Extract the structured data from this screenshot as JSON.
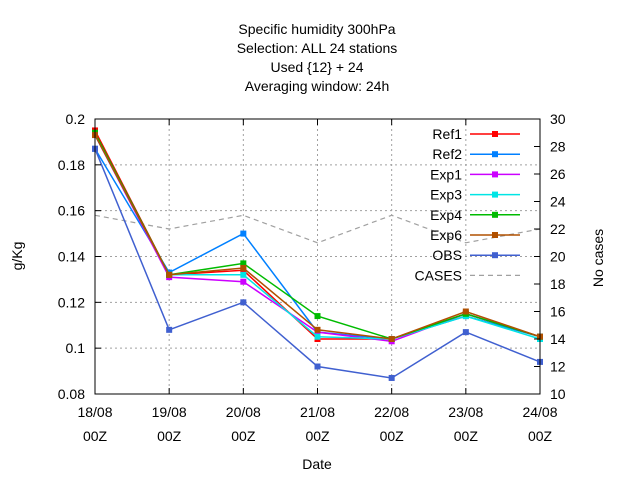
{
  "chart_data": {
    "type": "line",
    "title_lines": [
      "Specific humidity 300hPa",
      "Selection: ALL      24 stations",
      "Used {12} + 24",
      "Averaging window: 24h"
    ],
    "xlabel": "Date",
    "ylabel": "g/Kg",
    "y2label": "No cases",
    "categories": [
      "18/08 00Z",
      "19/08 00Z",
      "20/08 00Z",
      "21/08 00Z",
      "22/08 00Z",
      "23/08 00Z",
      "24/08 00Z"
    ],
    "category_lines": [
      [
        "18/08",
        "00Z"
      ],
      [
        "19/08",
        "00Z"
      ],
      [
        "20/08",
        "00Z"
      ],
      [
        "21/08",
        "00Z"
      ],
      [
        "22/08",
        "00Z"
      ],
      [
        "23/08",
        "00Z"
      ],
      [
        "24/08",
        "00Z"
      ]
    ],
    "ylim": [
      0.08,
      0.2
    ],
    "yticks": [
      0.08,
      0.1,
      0.12,
      0.14,
      0.16,
      0.18,
      0.2
    ],
    "yticklabels": [
      "0.08",
      "0.1",
      "0.12",
      "0.14",
      "0.16",
      "0.18",
      "0.2"
    ],
    "y2lim": [
      10,
      30
    ],
    "y2ticks": [
      10,
      12,
      14,
      16,
      18,
      20,
      22,
      24,
      26,
      28,
      30
    ],
    "y2ticklabels": [
      "10",
      "12",
      "14",
      "16",
      "18",
      "20",
      "22",
      "24",
      "26",
      "28",
      "30"
    ],
    "grid": true,
    "legend_position": "top-right",
    "series": [
      {
        "name": "Ref1",
        "color": "#ff0000",
        "values": [
          0.195,
          0.132,
          0.134,
          0.104,
          0.104,
          0.115,
          0.105
        ]
      },
      {
        "name": "Ref2",
        "color": "#0080ff",
        "values": [
          0.187,
          0.133,
          0.15,
          0.107,
          0.104,
          0.114,
          0.105
        ]
      },
      {
        "name": "Exp1",
        "color": "#cc00ff",
        "values": [
          0.193,
          0.131,
          0.129,
          0.107,
          0.103,
          0.115,
          0.105
        ]
      },
      {
        "name": "Exp3",
        "color": "#00e5e5",
        "values": [
          0.193,
          0.132,
          0.132,
          0.105,
          0.104,
          0.114,
          0.104
        ]
      },
      {
        "name": "Exp4",
        "color": "#00bb00",
        "values": [
          0.194,
          0.132,
          0.137,
          0.114,
          0.104,
          0.115,
          0.105
        ]
      },
      {
        "name": "Exp6",
        "color": "#b05000",
        "values": [
          0.193,
          0.132,
          0.135,
          0.108,
          0.104,
          0.116,
          0.105
        ]
      },
      {
        "name": "OBS",
        "color": "#4060d0",
        "values": [
          0.187,
          0.108,
          0.12,
          0.092,
          0.087,
          0.107,
          0.094
        ]
      },
      {
        "name": "CASES",
        "color": "#a0a0a0",
        "axis": "y2",
        "dashed": true,
        "values": [
          23,
          22,
          23,
          21,
          23,
          21,
          22
        ]
      }
    ]
  }
}
